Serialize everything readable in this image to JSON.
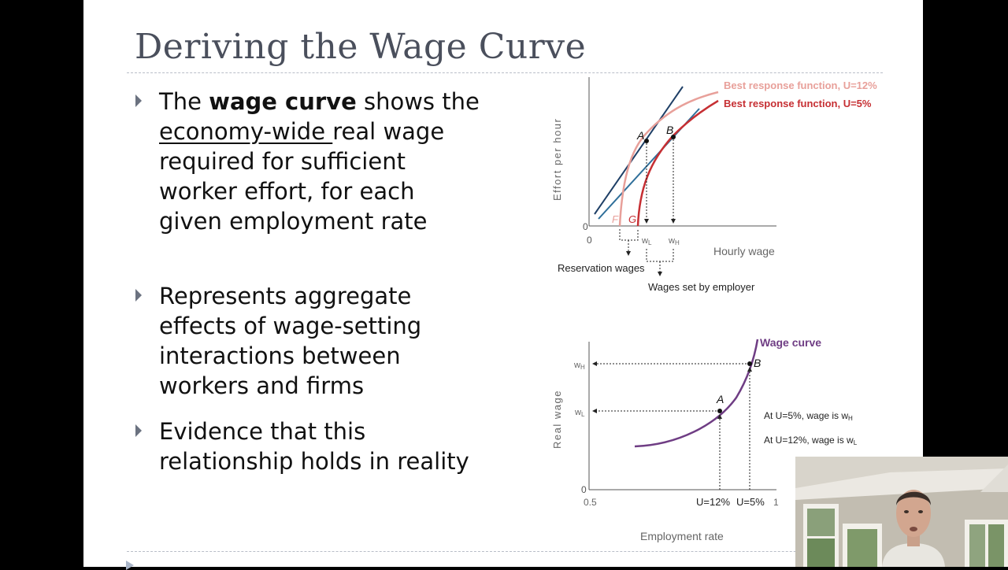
{
  "slide": {
    "title": "Deriving the Wage Curve",
    "bullets": [
      {
        "part1": "The ",
        "bold": "wage curve",
        "part2": " shows the ",
        "underlined": "economy-wide ",
        "part3": "real wage required for sufficient worker effort, for each given employment rate"
      },
      {
        "text": "Represents aggregate effects of wage-setting interactions between workers and firms"
      },
      {
        "text": "Evidence that this relationship holds in reality"
      }
    ]
  },
  "top_chart": {
    "ylabel": "Effort per hour",
    "xlabel": "Hourly wage",
    "origin_x": "0",
    "origin_y": "0",
    "legend": [
      {
        "text": "Best response function, U=12%",
        "color": "#e8a09a"
      },
      {
        "text": "Best response function, U=5%",
        "color": "#c62f33"
      }
    ],
    "point_labels": {
      "a": "A",
      "b": "B",
      "f": "F",
      "g": "G"
    },
    "x_ticks": {
      "wl_main": "w",
      "wl_sub": "L",
      "wh_main": "w",
      "wh_sub": "H"
    },
    "reservation_label": "Reservation wages",
    "employer_label": "Wages set by employer",
    "colors": {
      "isocost": "#1e3f66",
      "isocost2": "#2f6f9a",
      "curve12": "#e8a09a",
      "curve5": "#c62f33"
    }
  },
  "bottom_chart": {
    "ylabel": "Real wage",
    "xlabel": "Employment rate",
    "series_label": "Wage curve",
    "series_color": "#6f3d84",
    "origin_y": "0",
    "x_ticks": [
      "0.5",
      "U=12%",
      "U=5%",
      "1"
    ],
    "y_ticks": {
      "wh_main": "w",
      "wh_sub": "H",
      "wl_main": "w",
      "wl_sub": "L"
    },
    "point_labels": {
      "a": "A",
      "b": "B"
    },
    "annotations": [
      {
        "main": "At U=5%, wage is w",
        "sub": "H"
      },
      {
        "main": "At U=12%, wage is w",
        "sub": "L"
      }
    ]
  }
}
